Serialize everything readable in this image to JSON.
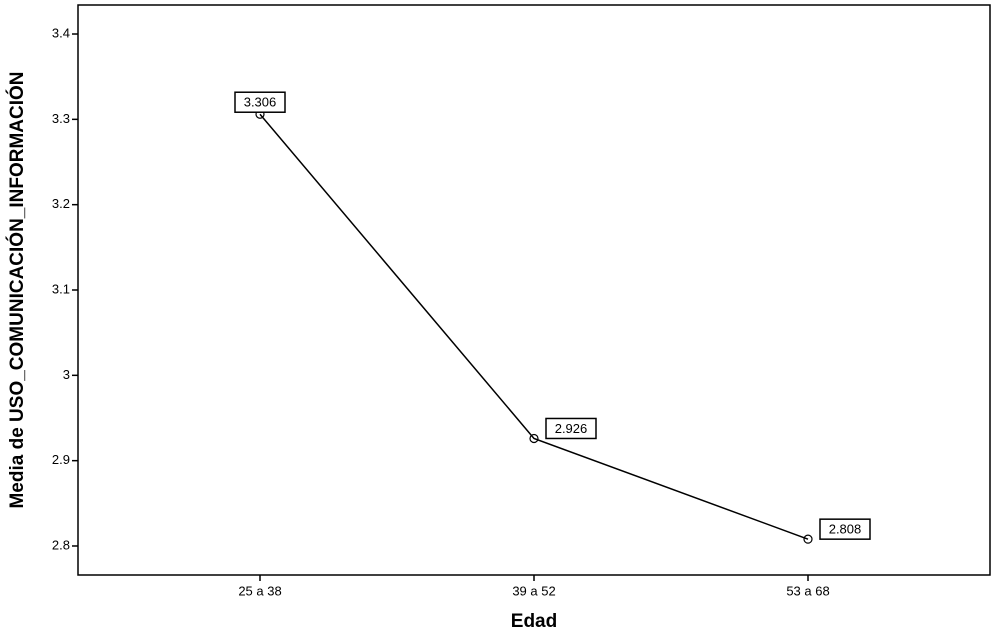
{
  "chart_data": {
    "type": "line",
    "y_label": "Media de USO_COMUNICACIÓN_INFORMACIÓN",
    "x_label": "Edad",
    "categories": [
      "25 a 38",
      "39 a 52",
      "53 a 68"
    ],
    "values": [
      3.306,
      2.926,
      2.808
    ],
    "color": "#000000",
    "ylim": [
      2.766,
      3.434
    ],
    "yticks": [
      2.8,
      2.9,
      3,
      3.1,
      3.2,
      3.3,
      3.4
    ],
    "grid": false
  }
}
